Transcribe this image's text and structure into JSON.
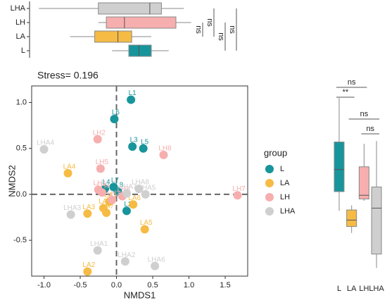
{
  "chart_data": [
    {
      "type": "boxplot_h",
      "categories": [
        "L",
        "LA",
        "LH",
        "LHA"
      ],
      "colors": [
        "#17959b",
        "#f6bb44",
        "#f7aeae",
        "#cfcfcf"
      ],
      "min": [
        -0.06,
        -0.64,
        -0.25,
        -1.07
      ],
      "q1": [
        0.17,
        -0.3,
        -0.14,
        -0.25
      ],
      "median": [
        0.31,
        0.02,
        0.11,
        0.46
      ],
      "q3": [
        0.48,
        0.21,
        0.82,
        0.62
      ],
      "max": [
        0.72,
        0.48,
        1.03,
        0.93
      ],
      "annotations": [
        "ns",
        "ns",
        "ns",
        "ns"
      ]
    },
    {
      "type": "scatter",
      "title": "Stress= 0.196",
      "xlabel": "NMDS1",
      "ylabel": "NMDS2",
      "legend_title": "group",
      "xlim": [
        -1.17,
        1.81
      ],
      "ylim": [
        -0.89,
        1.18
      ],
      "xticks": [
        {
          "value": -1,
          "label": "-1.0"
        },
        -0.5,
        {
          "value": 0,
          "label": "0.0"
        },
        0.5,
        {
          "value": 1,
          "label": "1.0"
        },
        1.5
      ],
      "yticks": [
        -0.5,
        {
          "value": 0,
          "label": "0.0"
        },
        0.5,
        {
          "value": 1,
          "label": "1.0"
        }
      ],
      "series": [
        {
          "name": "L",
          "color": "#17959b",
          "labels": [
            "L1",
            "L2",
            "L3",
            "L4",
            "L5",
            "L6",
            "L7",
            "L8"
          ],
          "x": [
            0.2,
            0.14,
            0.22,
            -0.16,
            0.37,
            -0.03,
            -0.04,
            0.02
          ],
          "y": [
            1.03,
            -0.18,
            0.52,
            0.06,
            0.5,
            0.82,
            0.08,
            0.03
          ]
        },
        {
          "name": "LA",
          "color": "#f6bb44",
          "labels": [
            "LA1",
            "LA2",
            "LA3",
            "LA4",
            "LA5",
            "LA6",
            "LA7",
            "LA8"
          ],
          "x": [
            -0.1,
            -0.4,
            -0.4,
            -0.67,
            0.39,
            0.23,
            -0.14,
            -0.18
          ],
          "y": [
            -0.08,
            -0.84,
            -0.21,
            0.23,
            -0.38,
            -0.11,
            -0.2,
            -0.15
          ]
        },
        {
          "name": "LH",
          "color": "#f7aeae",
          "labels": [
            "LH1",
            "LH2",
            "LH3",
            "LH4",
            "LH5",
            "LH6",
            "LH7",
            "LH8"
          ],
          "x": [
            -0.25,
            -0.26,
            -0.06,
            -0.2,
            -0.22,
            0.08,
            1.67,
            0.65
          ],
          "y": [
            0.05,
            0.6,
            -0.06,
            0.02,
            0.28,
            -0.02,
            -0.01,
            0.43
          ]
        },
        {
          "name": "LHA",
          "color": "#cfcfcf",
          "labels": [
            "LHA1",
            "LHA2",
            "LHA3",
            "LHA4",
            "LHA5",
            "LHA6",
            "LHA7",
            "LHA8"
          ],
          "x": [
            -0.26,
            0.12,
            -0.63,
            -1.0,
            0.4,
            0.53,
            0.14,
            0.31
          ],
          "y": [
            -0.61,
            -0.73,
            -0.22,
            0.49,
            0.0,
            -0.78,
            0.01,
            0.06
          ]
        }
      ]
    },
    {
      "type": "boxplot_v",
      "categories": [
        "L",
        "LA",
        "LH",
        "LHA"
      ],
      "colors": [
        "#17959b",
        "#f6bb44",
        "#f7aeae",
        "#cfcfcf"
      ],
      "min": [
        -0.18,
        -0.42,
        -0.07,
        -0.8
      ],
      "q1": [
        0.03,
        -0.35,
        -0.05,
        -0.65
      ],
      "median": [
        0.27,
        -0.28,
        -0.01,
        -0.15
      ],
      "q3": [
        0.57,
        -0.17,
        0.3,
        0.08
      ],
      "max": [
        1.05,
        -0.12,
        0.55,
        0.58
      ],
      "annotations": [
        "ns",
        "**",
        "ns",
        "ns"
      ]
    }
  ]
}
